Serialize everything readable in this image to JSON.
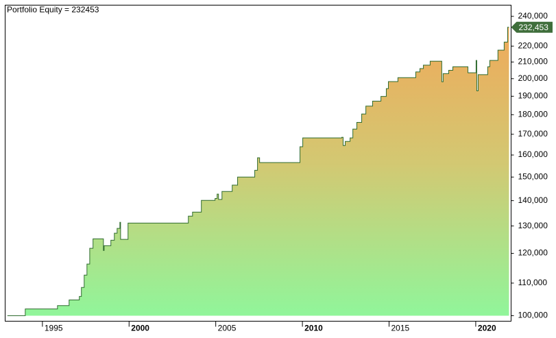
{
  "chart_data": {
    "type": "area",
    "title": "Portfolio Equity = 232453",
    "log_scale": true,
    "xlim": [
      1992.85,
      2022.04
    ],
    "xticks": [
      1995,
      2000,
      2005,
      2010,
      2015,
      2020
    ],
    "ylim": [
      98400,
      248000
    ],
    "yticks": [
      {
        "value": 100000,
        "label": "100,000"
      },
      {
        "value": 110000,
        "label": "110,000"
      },
      {
        "value": 120000,
        "label": "120,000"
      },
      {
        "value": 130000,
        "label": "130,000"
      },
      {
        "value": 140000,
        "label": "140,000"
      },
      {
        "value": 150000,
        "label": "150,000"
      },
      {
        "value": 160000,
        "label": "160,000"
      },
      {
        "value": 170000,
        "label": "170,000"
      },
      {
        "value": 180000,
        "label": "180,000"
      },
      {
        "value": 190000,
        "label": "190,000"
      },
      {
        "value": 200000,
        "label": "200,000"
      },
      {
        "value": 210000,
        "label": "210,000"
      },
      {
        "value": 220000,
        "label": "220,000"
      },
      {
        "value": 240000,
        "label": "240,000"
      }
    ],
    "x": [
      1992.98,
      1994.01,
      1994.01,
      1995.87,
      1995.87,
      1996.54,
      1996.54,
      1997.13,
      1997.13,
      1997.25,
      1997.25,
      1997.41,
      1997.41,
      1997.57,
      1997.57,
      1997.73,
      1997.73,
      1997.92,
      1997.92,
      1998.52,
      1998.52,
      1998.56,
      1998.56,
      1998.95,
      1998.95,
      1999.15,
      1999.15,
      1999.31,
      1999.31,
      1999.47,
      1999.47,
      1999.51,
      1999.51,
      1999.94,
      1999.94,
      2003.42,
      2003.42,
      2003.66,
      2003.66,
      2004.17,
      2004.17,
      2004.96,
      2004.96,
      2005.08,
      2005.08,
      2005.16,
      2005.16,
      2005.36,
      2005.36,
      2005.95,
      2005.95,
      2006.26,
      2006.26,
      2007.25,
      2007.25,
      2007.41,
      2007.41,
      2007.53,
      2007.53,
      2009.86,
      2009.86,
      2010.02,
      2010.02,
      2012.27,
      2012.27,
      2012.35,
      2012.35,
      2012.47,
      2012.47,
      2012.75,
      2012.75,
      2012.91,
      2012.91,
      2013.14,
      2013.14,
      2013.42,
      2013.42,
      2013.66,
      2013.66,
      2014.05,
      2014.05,
      2014.53,
      2014.53,
      2014.84,
      2014.84,
      2014.96,
      2014.96,
      2015.51,
      2015.51,
      2016.54,
      2016.54,
      2016.78,
      2016.78,
      2016.98,
      2016.98,
      2017.37,
      2017.37,
      2018.04,
      2018.04,
      2018.12,
      2018.12,
      2018.44,
      2018.44,
      2018.68,
      2018.68,
      2019.55,
      2019.55,
      2020.02,
      2020.02,
      2020.06,
      2020.06,
      2020.14,
      2020.14,
      2020.69,
      2020.69,
      2020.81,
      2020.81,
      2021.28,
      2021.28,
      2021.64,
      2021.64,
      2021.84,
      2021.84,
      2021.92
    ],
    "series": [
      {
        "name": "Portfolio Equity",
        "color": "#2f6b2f",
        "marker_label": "232,453",
        "marker_color": "#3f6e3b",
        "fill_top": "#f4a456",
        "fill_mid": "#d3c872",
        "fill_bottom": "#8ef79c",
        "values": [
          100000,
          100000,
          102000,
          102000,
          103000,
          103000,
          104700,
          104700,
          105800,
          105800,
          108600,
          108600,
          112600,
          112600,
          116300,
          116300,
          121800,
          121800,
          125200,
          125200,
          121000,
          121000,
          122700,
          122700,
          124700,
          124700,
          127300,
          127300,
          129100,
          129100,
          131400,
          131400,
          125000,
          125000,
          131100,
          131100,
          133800,
          133800,
          135400,
          135400,
          140100,
          140100,
          140900,
          140900,
          142700,
          142700,
          140500,
          140500,
          143800,
          143800,
          146500,
          146500,
          150000,
          150000,
          153000,
          153000,
          158700,
          158700,
          156500,
          156500,
          163900,
          163900,
          168200,
          168200,
          168500,
          168500,
          164500,
          164500,
          166500,
          166500,
          168200,
          168200,
          172600,
          172600,
          176000,
          176000,
          180400,
          180400,
          184600,
          184600,
          187300,
          187300,
          189900,
          189900,
          194300,
          194300,
          198300,
          198300,
          200600,
          200600,
          204000,
          204000,
          206000,
          206000,
          208100,
          208100,
          210500,
          210500,
          198200,
          198200,
          203000,
          203000,
          205000,
          205000,
          207100,
          207100,
          203500,
          203500,
          211000,
          211000,
          193000,
          193000,
          202400,
          202400,
          207100,
          207100,
          211000,
          211000,
          217400,
          217400,
          222600,
          222600,
          232453,
          232453
        ]
      }
    ]
  }
}
